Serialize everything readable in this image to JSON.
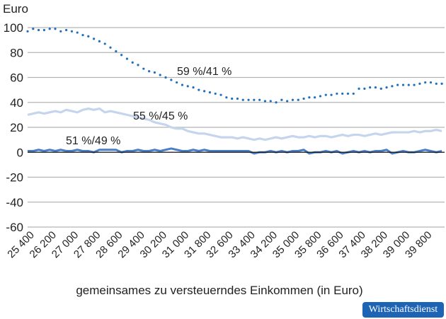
{
  "chart_data": {
    "type": "line",
    "ylabel": "Euro",
    "xlabel": "gemeinsames zu versteuerndes Einkommen (in Euro)",
    "ylim": [
      -60,
      100
    ],
    "yticks": [
      100,
      80,
      60,
      40,
      20,
      0,
      -20,
      -40,
      -60
    ],
    "xlim": [
      25400,
      40500
    ],
    "xticks": [
      "25 400",
      "26 200",
      "27 000",
      "27 800",
      "28 600",
      "29 400",
      "30 200",
      "31 000",
      "31 800",
      "32 600",
      "33 400",
      "34 200",
      "35 000",
      "35 800",
      "36 600",
      "37 400",
      "38 200",
      "39 000",
      "39 800"
    ],
    "grid": true,
    "x_start": 25400,
    "x_step": 200,
    "series": [
      {
        "style": "dotted",
        "color": "#1f6fbf",
        "annotation": "59 %/41 %",
        "values": [
          97,
          99,
          98,
          98,
          99,
          99,
          97,
          98,
          97,
          96,
          94,
          93,
          91,
          89,
          87,
          84,
          81,
          78,
          75,
          72,
          70,
          67,
          65,
          64,
          62,
          60,
          58,
          56,
          54,
          53,
          52,
          50,
          49,
          48,
          47,
          46,
          44,
          43,
          43,
          42,
          42,
          42,
          42,
          41,
          41,
          40,
          42,
          41,
          42,
          42,
          43,
          44,
          44,
          45,
          46,
          46,
          47,
          47,
          47,
          47,
          51,
          51,
          52,
          52,
          51,
          52,
          53,
          54,
          54,
          54,
          54,
          55,
          56,
          56,
          55,
          55
        ]
      },
      {
        "style": "solid-light",
        "color": "#c5d5ee",
        "annotation": "55 %/45 %",
        "values": [
          30,
          31,
          32,
          31,
          32,
          33,
          32,
          34,
          33,
          32,
          34,
          35,
          34,
          35,
          32,
          33,
          32,
          31,
          30,
          29,
          28,
          27,
          26,
          24,
          23,
          22,
          20,
          19,
          19,
          17,
          16,
          15,
          15,
          14,
          13,
          12,
          12,
          12,
          11,
          12,
          11,
          10,
          11,
          10,
          11,
          12,
          11,
          12,
          13,
          12,
          12,
          13,
          12,
          13,
          13,
          12,
          13,
          14,
          13,
          14,
          14,
          13,
          14,
          15,
          14,
          15,
          16,
          16,
          16,
          16,
          17,
          16,
          17,
          17,
          18,
          17
        ]
      },
      {
        "style": "solid",
        "color": "#4a7fc8",
        "annotation": "51 %/49 %",
        "values": [
          1,
          1,
          2,
          1,
          2,
          1,
          2,
          1,
          1,
          2,
          1,
          1,
          0,
          2,
          2,
          2,
          2,
          0,
          1,
          1,
          2,
          1,
          1,
          2,
          1,
          2,
          3,
          2,
          1,
          1,
          2,
          1,
          2,
          1,
          1,
          1,
          1,
          1,
          1,
          1,
          1,
          -1,
          0,
          0,
          1,
          0,
          1,
          0,
          1,
          1,
          2,
          -1,
          0,
          0,
          1,
          0,
          1,
          -1,
          0,
          1,
          0,
          1,
          0,
          1,
          1,
          2,
          -1,
          0,
          1,
          0,
          0,
          1,
          2,
          1,
          0,
          1
        ]
      }
    ]
  },
  "brand": {
    "label": "Wirtschaftsdienst",
    "color": "#1d64b4"
  }
}
